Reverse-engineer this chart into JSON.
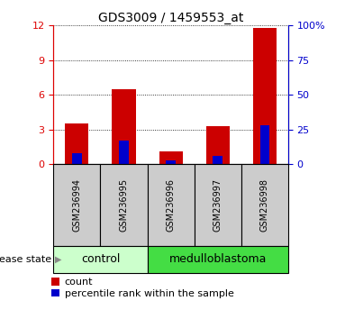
{
  "title": "GDS3009 / 1459553_at",
  "samples": [
    "GSM236994",
    "GSM236995",
    "GSM236996",
    "GSM236997",
    "GSM236998"
  ],
  "count_values": [
    3.5,
    6.5,
    1.1,
    3.3,
    11.8
  ],
  "percentile_values": [
    8,
    17,
    3,
    6,
    28
  ],
  "left_ylim": [
    0,
    12
  ],
  "left_yticks": [
    0,
    3,
    6,
    9,
    12
  ],
  "right_ylim": [
    0,
    100
  ],
  "right_yticks": [
    0,
    25,
    50,
    75,
    100
  ],
  "left_ycolor": "#dd0000",
  "right_ycolor": "#0000cc",
  "count_color": "#cc0000",
  "percentile_color": "#0000cc",
  "group_labels": [
    "control",
    "medulloblastoma"
  ],
  "group_ranges": [
    [
      0,
      2
    ],
    [
      2,
      5
    ]
  ],
  "group_light_color": "#ccffcc",
  "group_dark_color": "#44dd44",
  "sample_bg_color": "#cccccc",
  "disease_state_label": "disease state",
  "legend_count": "count",
  "legend_percentile": "percentile rank within the sample",
  "title_fontsize": 10,
  "tick_fontsize": 8,
  "legend_fontsize": 8,
  "sample_fontsize": 7,
  "group_fontsize": 9
}
